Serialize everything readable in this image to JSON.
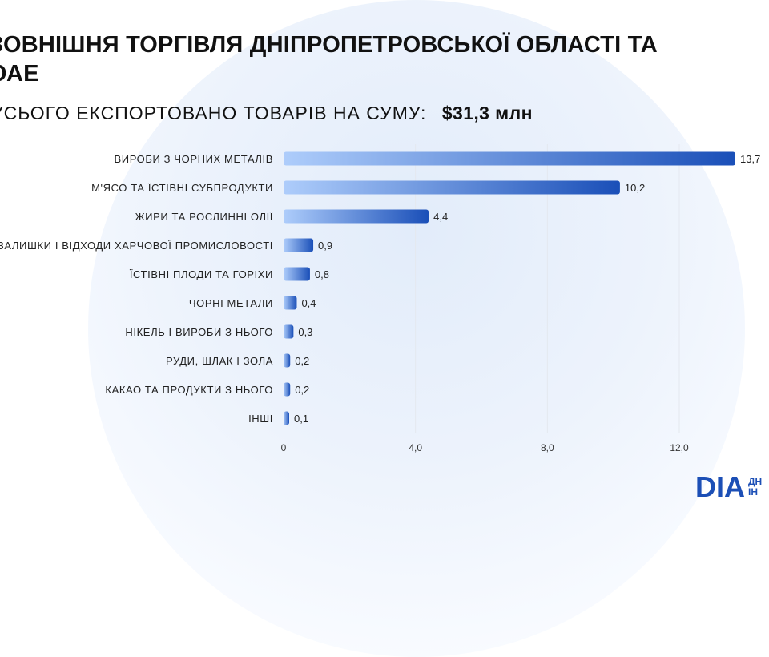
{
  "header": {
    "title_line1": "ЗОВНІШНЯ ТОРГІВЛЯ ДНІПРОПЕТРОВСЬКОЇ ОБЛАСТІ ТА",
    "title_line2": "ОАЕ",
    "subtitle_label": "УСЬОГО ЕКСПОРТОВАНО ТОВАРІВ НА СУМУ:",
    "subtitle_total": "$31,3 млн"
  },
  "logo": {
    "mark": "DIA",
    "text_line1": "ДН",
    "text_line2": "ІН"
  },
  "colors": {
    "bar_start": "#aecdfb",
    "bar_end": "#1a4fb8",
    "logo": "#1c4fb6"
  },
  "chart_data": {
    "type": "bar",
    "orientation": "horizontal",
    "categories": [
      "ВИРОБИ З ЧОРНИХ МЕТАЛІВ",
      "М'ЯСО ТА ЇСТІВНІ СУБПРОДУКТИ",
      "ЖИРИ ТА РОСЛИННІ ОЛІЇ",
      "ЗАЛИШКИ І ВІДХОДИ ХАРЧОВОЇ ПРОМИСЛОВОСТІ",
      "ЇСТІВНІ ПЛОДИ ТА ГОРІХИ",
      "ЧОРНІ МЕТАЛИ",
      "НІКЕЛЬ І ВИРОБИ З НЬОГО",
      "РУДИ, ШЛАК І ЗОЛА",
      "КАКАО ТА ПРОДУКТИ З НЬОГО",
      "ІНШІ"
    ],
    "values": [
      13.7,
      10.2,
      4.4,
      0.9,
      0.8,
      0.4,
      0.3,
      0.2,
      0.2,
      0.1
    ],
    "value_labels": [
      "13,7",
      "10,2",
      "4,4",
      "0,9",
      "0,8",
      "0,4",
      "0,3",
      "0,2",
      "0,2",
      "0,1"
    ],
    "xlim": [
      0,
      13.7
    ],
    "xticks": [
      0,
      4,
      8,
      12
    ],
    "xtick_labels": [
      "0",
      "4,0",
      "8,0",
      "12,0"
    ],
    "grid": true
  }
}
